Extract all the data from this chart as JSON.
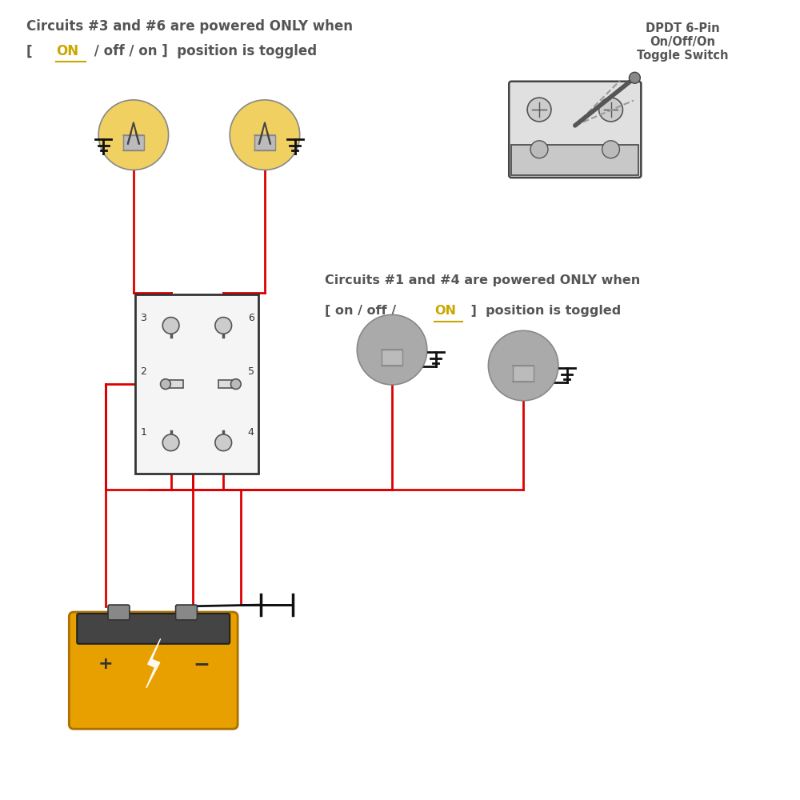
{
  "bg_color": "#ffffff",
  "title1": "Circuits #3 and #6 are powered ONLY when",
  "title2_pre": "[  ",
  "title2_on1": "ON",
  "title2_mid": " / off / on ]  position is toggled",
  "title3": "Circuits #1 and #4 are powered ONLY when",
  "title4_pre": "[ on / off / ",
  "title4_on2": "ON",
  "title4_post": " ]  position is toggled",
  "label_dpdt": "DPDT 6-Pin\nOn/Off/On\nToggle Switch",
  "wire_color_red": "#dd0000",
  "wire_color_black": "#111111",
  "text_color": "#555555",
  "on_color": "#c8a800",
  "switch_box_color": "#333333",
  "battery_color": "#e8a000",
  "bulb_on_color": "#f0d060",
  "bulb_off_color": "#aaaaaa"
}
